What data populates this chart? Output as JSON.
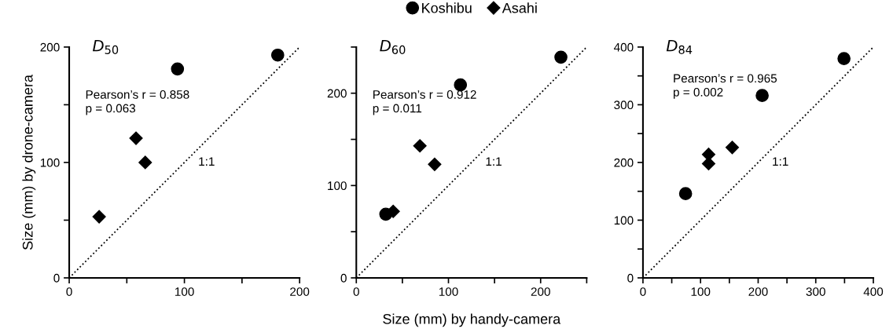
{
  "chart_data": [
    {
      "type": "scatter",
      "title": "D$_{50}$",
      "ylabel": "Size (mm) by drone-camera",
      "xlim": [
        0,
        200
      ],
      "ylim": [
        0,
        200
      ],
      "xticks": [
        0,
        {
          "value": 50,
          "label": null
        },
        100,
        {
          "value": 150,
          "label": null
        },
        200
      ],
      "yticks": [
        0,
        {
          "value": 50,
          "label": null
        },
        100,
        {
          "value": 150,
          "label": null
        },
        200
      ],
      "annotations": [
        "Pearson’s r = 0.858\np = 0.063",
        "1:1"
      ],
      "series": [
        {
          "marker": "circle",
          "color": "#000000",
          "x": [
            94,
            181
          ],
          "values": [
            181,
            193
          ]
        },
        {
          "marker": "diamond",
          "color": "#000000",
          "x": [
            58,
            66,
            26
          ],
          "values": [
            121,
            100,
            53
          ]
        },
        {
          "type": "line",
          "line_style": "dotted",
          "color": "#000000",
          "x": [
            0,
            200
          ],
          "values": [
            0,
            200
          ]
        }
      ]
    },
    {
      "type": "scatter",
      "title": "D$_{60}$",
      "xlabel": "Size (mm) by handy-camera",
      "legend": "top",
      "xlim": [
        0,
        250
      ],
      "ylim": [
        0,
        250
      ],
      "xticks": [
        0,
        {
          "value": 50,
          "label": null
        },
        100,
        {
          "value": 150,
          "label": null
        },
        200,
        {
          "value": 250,
          "label": null
        }
      ],
      "yticks": [
        0,
        {
          "value": 50,
          "label": null
        },
        100,
        {
          "value": 150,
          "label": null
        },
        200,
        {
          "value": 250,
          "label": null
        }
      ],
      "annotations": [
        "Pearson’s r = 0.912\np = 0.011",
        "1:1"
      ],
      "series": [
        {
          "name": "Koshibu",
          "marker": "circle",
          "color": "#000000",
          "x": [
            222,
            113,
            32
          ],
          "values": [
            239,
            209,
            69
          ]
        },
        {
          "name": "Asahi",
          "marker": "diamond",
          "color": "#000000",
          "x": [
            69,
            85,
            40
          ],
          "values": [
            143,
            123,
            72
          ]
        },
        {
          "type": "line",
          "line_style": "dotted",
          "color": "#000000",
          "x": [
            0,
            250
          ],
          "values": [
            0,
            250
          ]
        }
      ]
    },
    {
      "type": "scatter",
      "title": "D$_{84}$",
      "xlim": [
        0,
        400
      ],
      "ylim": [
        0,
        400
      ],
      "xticks": [
        0,
        {
          "value": 50,
          "label": null
        },
        100,
        {
          "value": 150,
          "label": null
        },
        200,
        {
          "value": 250,
          "label": null
        },
        300,
        {
          "value": 350,
          "label": null
        },
        400
      ],
      "yticks": [
        0,
        {
          "value": 50,
          "label": null
        },
        100,
        {
          "value": 150,
          "label": null
        },
        200,
        {
          "value": 250,
          "label": null
        },
        300,
        {
          "value": 350,
          "label": null
        },
        400
      ],
      "annotations": [
        "Pearson’s r = 0.965\np = 0.002",
        "1:1"
      ],
      "series": [
        {
          "marker": "circle",
          "color": "#000000",
          "x": [
            349,
            207,
            74
          ],
          "values": [
            380,
            316,
            146
          ]
        },
        {
          "marker": "diamond",
          "color": "#000000",
          "x": [
            155,
            114,
            114
          ],
          "values": [
            226,
            214,
            198
          ]
        },
        {
          "type": "line",
          "line_style": "dotted",
          "color": "#000000",
          "x": [
            0,
            400
          ],
          "values": [
            0,
            400
          ]
        }
      ]
    }
  ]
}
